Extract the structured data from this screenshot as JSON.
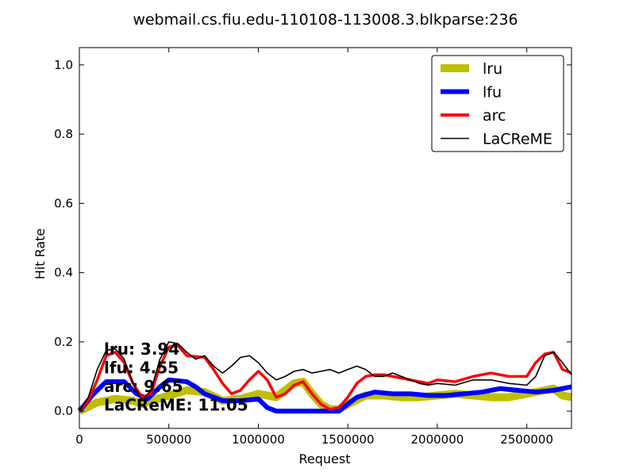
{
  "chart_data": {
    "type": "line",
    "title": "webmail.cs.fiu.edu-110108-113008.3.blkparse:236",
    "xlabel": "Request",
    "ylabel": "Hit Rate",
    "xlim": [
      0,
      2750000
    ],
    "ylim": [
      -0.05,
      1.05
    ],
    "xticks": [
      0,
      500000,
      1000000,
      1500000,
      2000000,
      2500000
    ],
    "xtick_labels": [
      "0",
      "500000",
      "1000000",
      "1500000",
      "2000000",
      "2500000"
    ],
    "yticks": [
      0.0,
      0.2,
      0.4,
      0.6,
      0.8,
      1.0
    ],
    "ytick_labels": [
      "0.0",
      "0.2",
      "0.4",
      "0.6",
      "0.8",
      "1.0"
    ],
    "grid": false,
    "legend_position": "top-right",
    "series": [
      {
        "name": "lru",
        "color": "#bfbf00",
        "points": [
          [
            0,
            0.0
          ],
          [
            100000,
            0.025
          ],
          [
            200000,
            0.035
          ],
          [
            300000,
            0.03
          ],
          [
            350000,
            0.02
          ],
          [
            400000,
            0.03
          ],
          [
            500000,
            0.045
          ],
          [
            600000,
            0.06
          ],
          [
            700000,
            0.055
          ],
          [
            800000,
            0.03
          ],
          [
            900000,
            0.035
          ],
          [
            1000000,
            0.05
          ],
          [
            1100000,
            0.04
          ],
          [
            1200000,
            0.08
          ],
          [
            1250000,
            0.085
          ],
          [
            1300000,
            0.05
          ],
          [
            1350000,
            0.02
          ],
          [
            1400000,
            0.005
          ],
          [
            1450000,
            0.005
          ],
          [
            1500000,
            0.02
          ],
          [
            1600000,
            0.045
          ],
          [
            1700000,
            0.045
          ],
          [
            1800000,
            0.04
          ],
          [
            1900000,
            0.04
          ],
          [
            2000000,
            0.045
          ],
          [
            2100000,
            0.05
          ],
          [
            2200000,
            0.045
          ],
          [
            2300000,
            0.04
          ],
          [
            2400000,
            0.04
          ],
          [
            2500000,
            0.05
          ],
          [
            2600000,
            0.06
          ],
          [
            2650000,
            0.065
          ],
          [
            2700000,
            0.045
          ],
          [
            2750000,
            0.04
          ]
        ]
      },
      {
        "name": "lfu",
        "color": "#0000ff",
        "points": [
          [
            0,
            0.0
          ],
          [
            80000,
            0.05
          ],
          [
            150000,
            0.085
          ],
          [
            250000,
            0.085
          ],
          [
            320000,
            0.05
          ],
          [
            380000,
            0.035
          ],
          [
            450000,
            0.07
          ],
          [
            500000,
            0.09
          ],
          [
            600000,
            0.085
          ],
          [
            650000,
            0.07
          ],
          [
            700000,
            0.05
          ],
          [
            800000,
            0.03
          ],
          [
            900000,
            0.03
          ],
          [
            1000000,
            0.035
          ],
          [
            1050000,
            0.01
          ],
          [
            1100000,
            0.0
          ],
          [
            1200000,
            0.0
          ],
          [
            1300000,
            0.0
          ],
          [
            1400000,
            0.0
          ],
          [
            1450000,
            0.0
          ],
          [
            1500000,
            0.02
          ],
          [
            1550000,
            0.04
          ],
          [
            1650000,
            0.055
          ],
          [
            1750000,
            0.05
          ],
          [
            1850000,
            0.05
          ],
          [
            1950000,
            0.045
          ],
          [
            2050000,
            0.045
          ],
          [
            2150000,
            0.05
          ],
          [
            2250000,
            0.055
          ],
          [
            2350000,
            0.065
          ],
          [
            2450000,
            0.06
          ],
          [
            2550000,
            0.055
          ],
          [
            2650000,
            0.06
          ],
          [
            2750000,
            0.07
          ]
        ]
      },
      {
        "name": "arc",
        "color": "#ff0000",
        "points": [
          [
            0,
            0.0
          ],
          [
            50000,
            0.03
          ],
          [
            100000,
            0.09
          ],
          [
            150000,
            0.16
          ],
          [
            200000,
            0.17
          ],
          [
            250000,
            0.14
          ],
          [
            300000,
            0.08
          ],
          [
            350000,
            0.04
          ],
          [
            400000,
            0.05
          ],
          [
            450000,
            0.13
          ],
          [
            500000,
            0.185
          ],
          [
            550000,
            0.19
          ],
          [
            600000,
            0.16
          ],
          [
            700000,
            0.155
          ],
          [
            750000,
            0.12
          ],
          [
            800000,
            0.08
          ],
          [
            850000,
            0.05
          ],
          [
            900000,
            0.06
          ],
          [
            950000,
            0.09
          ],
          [
            1000000,
            0.115
          ],
          [
            1050000,
            0.09
          ],
          [
            1100000,
            0.04
          ],
          [
            1150000,
            0.05
          ],
          [
            1200000,
            0.075
          ],
          [
            1250000,
            0.085
          ],
          [
            1300000,
            0.05
          ],
          [
            1350000,
            0.02
          ],
          [
            1400000,
            0.005
          ],
          [
            1450000,
            0.01
          ],
          [
            1500000,
            0.04
          ],
          [
            1550000,
            0.08
          ],
          [
            1600000,
            0.1
          ],
          [
            1650000,
            0.105
          ],
          [
            1700000,
            0.105
          ],
          [
            1800000,
            0.095
          ],
          [
            1900000,
            0.085
          ],
          [
            1950000,
            0.08
          ],
          [
            2000000,
            0.09
          ],
          [
            2100000,
            0.085
          ],
          [
            2200000,
            0.1
          ],
          [
            2300000,
            0.11
          ],
          [
            2400000,
            0.1
          ],
          [
            2500000,
            0.1
          ],
          [
            2550000,
            0.14
          ],
          [
            2600000,
            0.165
          ],
          [
            2650000,
            0.17
          ],
          [
            2700000,
            0.12
          ],
          [
            2750000,
            0.11
          ]
        ]
      },
      {
        "name": "LaCReME",
        "color": "#000000",
        "points": [
          [
            0,
            0.0
          ],
          [
            50000,
            0.04
          ],
          [
            100000,
            0.12
          ],
          [
            150000,
            0.175
          ],
          [
            200000,
            0.18
          ],
          [
            250000,
            0.15
          ],
          [
            300000,
            0.08
          ],
          [
            350000,
            0.03
          ],
          [
            400000,
            0.06
          ],
          [
            450000,
            0.15
          ],
          [
            500000,
            0.2
          ],
          [
            550000,
            0.195
          ],
          [
            600000,
            0.17
          ],
          [
            650000,
            0.15
          ],
          [
            700000,
            0.16
          ],
          [
            750000,
            0.13
          ],
          [
            800000,
            0.11
          ],
          [
            850000,
            0.13
          ],
          [
            900000,
            0.155
          ],
          [
            950000,
            0.16
          ],
          [
            1000000,
            0.14
          ],
          [
            1050000,
            0.11
          ],
          [
            1100000,
            0.09
          ],
          [
            1150000,
            0.1
          ],
          [
            1200000,
            0.115
          ],
          [
            1250000,
            0.12
          ],
          [
            1300000,
            0.11
          ],
          [
            1350000,
            0.115
          ],
          [
            1400000,
            0.12
          ],
          [
            1450000,
            0.11
          ],
          [
            1500000,
            0.12
          ],
          [
            1550000,
            0.13
          ],
          [
            1600000,
            0.12
          ],
          [
            1650000,
            0.1
          ],
          [
            1700000,
            0.1
          ],
          [
            1750000,
            0.11
          ],
          [
            1800000,
            0.1
          ],
          [
            1850000,
            0.09
          ],
          [
            1900000,
            0.08
          ],
          [
            1950000,
            0.075
          ],
          [
            2000000,
            0.08
          ],
          [
            2100000,
            0.075
          ],
          [
            2200000,
            0.09
          ],
          [
            2300000,
            0.09
          ],
          [
            2400000,
            0.08
          ],
          [
            2500000,
            0.075
          ],
          [
            2550000,
            0.1
          ],
          [
            2600000,
            0.16
          ],
          [
            2650000,
            0.17
          ],
          [
            2700000,
            0.14
          ],
          [
            2750000,
            0.105
          ]
        ]
      }
    ],
    "annotations": [
      {
        "label": "lru:",
        "value": "3.94"
      },
      {
        "label": "lfu:",
        "value": "4.55"
      },
      {
        "label": "arc:",
        "value": "9.65"
      },
      {
        "label": "LaCReME:",
        "value": "11.05"
      }
    ]
  }
}
